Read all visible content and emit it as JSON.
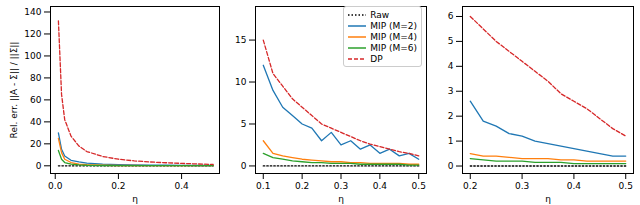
{
  "chart_data": [
    {
      "type": "line",
      "x_label": "η",
      "y_label": "Rel. err. ||A - Σ|| / ||Σ||",
      "grid": false,
      "x": [
        0.01,
        0.02,
        0.03,
        0.05,
        0.075,
        0.1,
        0.15,
        0.2,
        0.25,
        0.3,
        0.35,
        0.4,
        0.45,
        0.5
      ],
      "xlim": [
        -0.015,
        0.52
      ],
      "xticks": [
        {
          "value": 0,
          "label": "0.0"
        },
        0.2,
        0.4
      ],
      "ylim": [
        -7,
        145
      ],
      "yticks": [
        0,
        20,
        40,
        60,
        80,
        100,
        120,
        140
      ],
      "series": [
        {
          "name": "Raw",
          "color": "#000000",
          "line_style": "dotted",
          "values": [
            0,
            0,
            0,
            0,
            0,
            0,
            0,
            0,
            0,
            0,
            0,
            0,
            0,
            0
          ]
        },
        {
          "name": "MIP (M=2)",
          "color": "#1f77b4",
          "line_style": "solid",
          "values": [
            30,
            15,
            9,
            5,
            3.5,
            2.5,
            1.5,
            1,
            0.8,
            0.6,
            0.5,
            0.4,
            0.3,
            0.3
          ]
        },
        {
          "name": "MIP (M=4)",
          "color": "#ff7f0e",
          "line_style": "solid",
          "values": [
            25,
            12,
            6,
            3,
            1.5,
            1,
            0.5,
            0.3,
            0.3,
            0.2,
            0.2,
            0.2,
            0.2,
            0.2
          ]
        },
        {
          "name": "MIP (M=6)",
          "color": "#2ca02c",
          "line_style": "solid",
          "values": [
            14,
            6,
            3,
            1.5,
            0.8,
            0.5,
            0.3,
            0.2,
            0.2,
            0.2,
            0.2,
            0.1,
            0.1,
            0.1
          ]
        },
        {
          "name": "DP",
          "color": "#d62728",
          "line_style": "dashed",
          "values": [
            132,
            65,
            42,
            27,
            18,
            13,
            8.5,
            6,
            4.5,
            3.5,
            2.8,
            2.2,
            1.7,
            1.2
          ]
        }
      ]
    },
    {
      "type": "line",
      "x_label": "η",
      "grid": false,
      "legend": "upper right",
      "x": [
        0.1,
        0.125,
        0.15,
        0.175,
        0.2,
        0.225,
        0.25,
        0.275,
        0.3,
        0.325,
        0.35,
        0.375,
        0.4,
        0.425,
        0.45,
        0.475,
        0.5
      ],
      "xlim": [
        0.08,
        0.52
      ],
      "xticks": [
        0.1,
        0.2,
        0.3,
        0.4,
        0.5
      ],
      "ylim": [
        -0.9,
        19
      ],
      "yticks": [
        0,
        5,
        10,
        15
      ],
      "series": [
        {
          "name": "Raw",
          "color": "#000000",
          "line_style": "dotted",
          "values": [
            0,
            0,
            0,
            0,
            0,
            0,
            0,
            0,
            0,
            0,
            0,
            0,
            0,
            0,
            0,
            0,
            0
          ]
        },
        {
          "name": "MIP (M=2)",
          "color": "#1f77b4",
          "line_style": "solid",
          "values": [
            12,
            9,
            7,
            6,
            5,
            4.5,
            3,
            4,
            2.5,
            3,
            2,
            2.5,
            1.5,
            2,
            1.2,
            1.5,
            0.8
          ]
        },
        {
          "name": "MIP (M=4)",
          "color": "#ff7f0e",
          "line_style": "solid",
          "values": [
            3,
            1.5,
            1.2,
            1,
            0.8,
            0.7,
            0.6,
            0.5,
            0.5,
            0.4,
            0.4,
            0.3,
            0.3,
            0.3,
            0.3,
            0.2,
            0.2
          ]
        },
        {
          "name": "MIP (M=6)",
          "color": "#2ca02c",
          "line_style": "solid",
          "values": [
            1.5,
            1,
            0.8,
            0.6,
            0.5,
            0.4,
            0.4,
            0.3,
            0.3,
            0.3,
            0.2,
            0.2,
            0.2,
            0.2,
            0.2,
            0.1,
            0.1
          ]
        },
        {
          "name": "DP",
          "color": "#d62728",
          "line_style": "dashed",
          "values": [
            15,
            11,
            9.5,
            8,
            7,
            6,
            5,
            4.5,
            4,
            3.5,
            3,
            2.6,
            2.3,
            2,
            1.7,
            1.5,
            1.2
          ]
        }
      ]
    },
    {
      "type": "line",
      "x_label": "η",
      "grid": false,
      "x": [
        0.2,
        0.225,
        0.25,
        0.275,
        0.3,
        0.325,
        0.35,
        0.375,
        0.4,
        0.425,
        0.45,
        0.475,
        0.5
      ],
      "xlim": [
        0.185,
        0.515
      ],
      "xticks": [
        0.2,
        0.3,
        0.4,
        0.5
      ],
      "ylim": [
        -0.3,
        6.4
      ],
      "yticks": [
        0,
        1,
        2,
        3,
        4,
        5,
        6
      ],
      "series": [
        {
          "name": "Raw",
          "color": "#000000",
          "line_style": "dotted",
          "values": [
            0,
            0,
            0,
            0,
            0,
            0,
            0,
            0,
            0,
            0,
            0,
            0,
            0
          ]
        },
        {
          "name": "MIP (M=2)",
          "color": "#1f77b4",
          "line_style": "solid",
          "values": [
            2.6,
            1.8,
            1.6,
            1.3,
            1.2,
            1,
            0.9,
            0.8,
            0.7,
            0.6,
            0.5,
            0.4,
            0.4
          ]
        },
        {
          "name": "MIP (M=4)",
          "color": "#ff7f0e",
          "line_style": "solid",
          "values": [
            0.5,
            0.4,
            0.4,
            0.35,
            0.3,
            0.3,
            0.3,
            0.25,
            0.25,
            0.2,
            0.2,
            0.2,
            0.2
          ]
        },
        {
          "name": "MIP (M=6)",
          "color": "#2ca02c",
          "line_style": "solid",
          "values": [
            0.3,
            0.25,
            0.2,
            0.2,
            0.2,
            0.15,
            0.15,
            0.15,
            0.1,
            0.1,
            0.1,
            0.1,
            0.1
          ]
        },
        {
          "name": "DP",
          "color": "#d62728",
          "line_style": "dashed",
          "values": [
            6,
            5.5,
            5,
            4.6,
            4.2,
            3.8,
            3.4,
            2.9,
            2.6,
            2.3,
            1.9,
            1.5,
            1.2
          ]
        }
      ]
    }
  ]
}
